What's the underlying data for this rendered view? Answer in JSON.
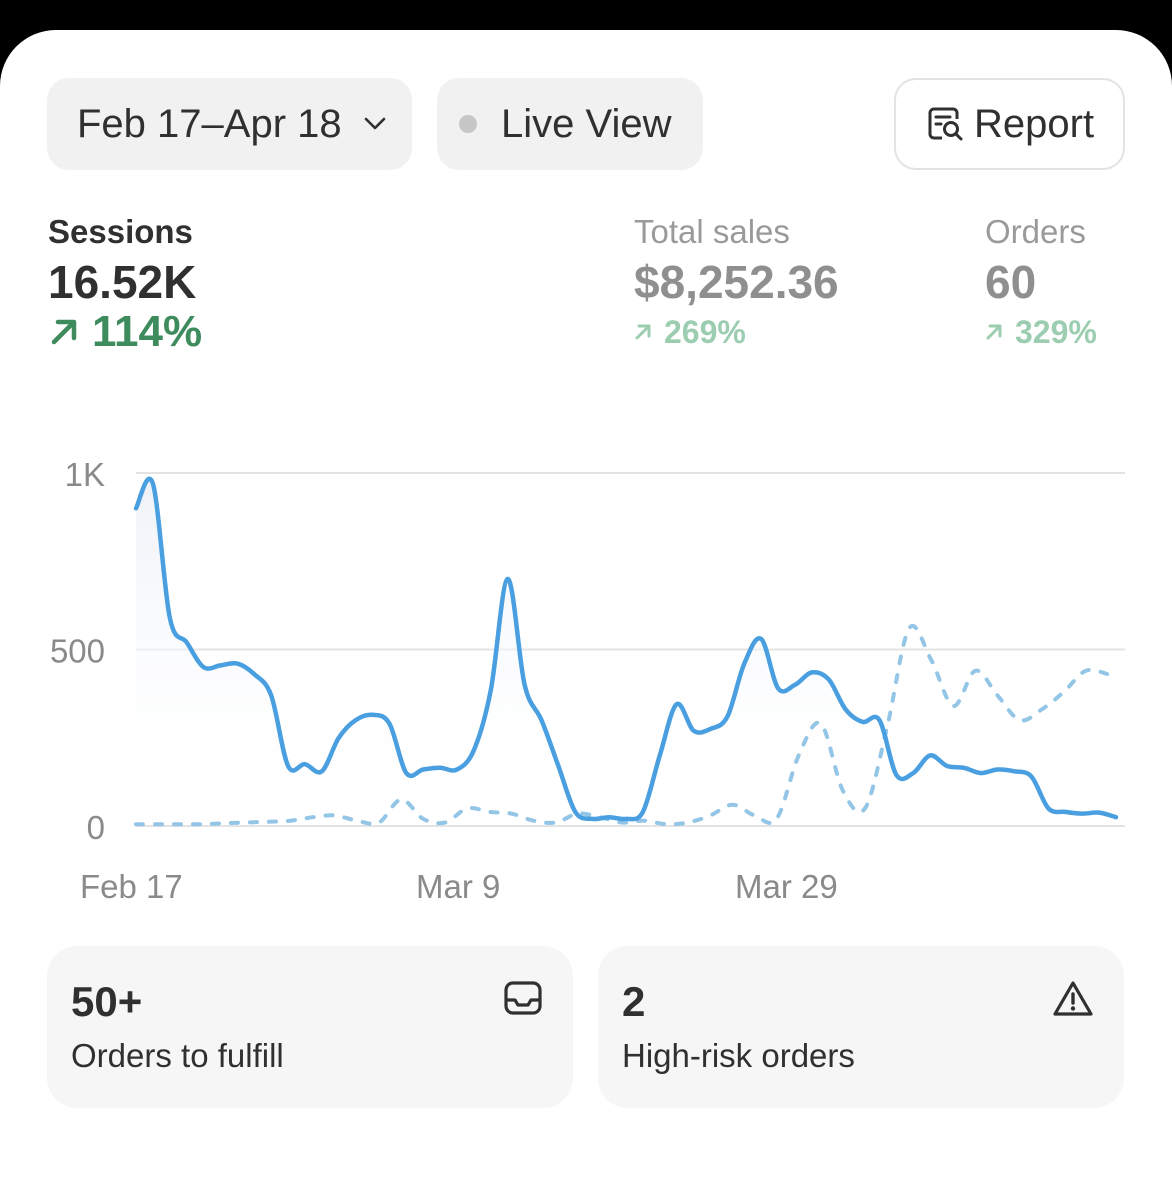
{
  "toolbar": {
    "date_range": "Feb 17–Apr 18",
    "live_view": "Live View",
    "report": "Report"
  },
  "metrics": {
    "sessions": {
      "label": "Sessions",
      "value": "16.52K",
      "delta": "114%"
    },
    "total_sales": {
      "label": "Total sales",
      "value": "$8,252.36",
      "delta": "269%"
    },
    "orders": {
      "label": "Orders",
      "value": "60",
      "delta": "329%"
    }
  },
  "chart_data": {
    "type": "line",
    "y_ticks": [
      "1K",
      "500",
      "0"
    ],
    "x_ticks": [
      "Feb 17",
      "Mar 9",
      "Mar 29"
    ],
    "ylim": [
      0,
      1000
    ],
    "grid": true,
    "colors": {
      "current": "#4a9fe0",
      "comparison": "#93c5e6"
    },
    "series": [
      {
        "style": "solid",
        "values": [
          900,
          970,
          590,
          520,
          450,
          455,
          460,
          430,
          370,
          170,
          175,
          155,
          250,
          300,
          315,
          290,
          150,
          160,
          165,
          160,
          215,
          385,
          700,
          400,
          300,
          170,
          40,
          20,
          25,
          20,
          40,
          200,
          345,
          270,
          275,
          310,
          460,
          530,
          390,
          400,
          435,
          415,
          330,
          295,
          300,
          145,
          150,
          200,
          170,
          165,
          150,
          160,
          155,
          140,
          50,
          40,
          35,
          38,
          25
        ]
      },
      {
        "style": "dashed",
        "values": [
          5,
          5,
          5,
          5,
          8,
          10,
          12,
          15,
          25,
          30,
          15,
          10,
          75,
          20,
          10,
          50,
          40,
          35,
          15,
          10,
          35,
          25,
          10,
          15,
          5,
          10,
          30,
          60,
          30,
          20,
          200,
          290,
          100,
          50,
          280,
          560,
          470,
          340,
          440,
          370,
          300,
          330,
          380,
          440,
          430
        ]
      }
    ]
  },
  "cards": [
    {
      "count": "50+",
      "label": "Orders to fulfill",
      "icon": "inbox-icon"
    },
    {
      "count": "2",
      "label": "High-risk orders",
      "icon": "alert-triangle-icon"
    }
  ]
}
